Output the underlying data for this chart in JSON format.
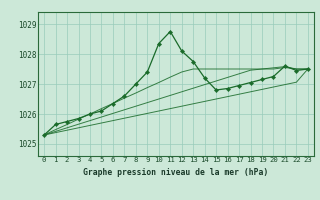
{
  "title": "Graphe pression niveau de la mer (hPa)",
  "bg_color": "#cce8d8",
  "grid_color": "#99ccbb",
  "line_color": "#1a6b2a",
  "xlim": [
    -0.5,
    23.5
  ],
  "ylim": [
    1024.6,
    1029.4
  ],
  "yticks": [
    1025,
    1026,
    1027,
    1028,
    1029
  ],
  "ylabels": [
    "1025",
    "1026",
    "1027",
    "1028",
    "1029"
  ],
  "xticks": [
    0,
    1,
    2,
    3,
    4,
    5,
    6,
    7,
    8,
    9,
    10,
    11,
    12,
    13,
    14,
    15,
    16,
    17,
    18,
    19,
    20,
    21,
    22,
    23
  ],
  "series_main": [
    1025.3,
    1025.65,
    1025.75,
    1025.85,
    1026.0,
    1026.1,
    1026.35,
    1026.6,
    1027.0,
    1027.4,
    1028.35,
    1028.75,
    1028.1,
    1027.75,
    1027.2,
    1026.8,
    1026.85,
    1026.95,
    1027.05,
    1027.15,
    1027.25,
    1027.6,
    1027.45,
    1027.5
  ],
  "series_trend1": [
    1025.3,
    1025.38,
    1025.46,
    1025.54,
    1025.62,
    1025.7,
    1025.78,
    1025.86,
    1025.94,
    1026.02,
    1026.1,
    1026.18,
    1026.26,
    1026.34,
    1026.42,
    1026.5,
    1026.58,
    1026.66,
    1026.74,
    1026.82,
    1026.9,
    1026.98,
    1027.06,
    1027.5
  ],
  "series_trend2": [
    1025.3,
    1025.42,
    1025.54,
    1025.66,
    1025.78,
    1025.9,
    1026.02,
    1026.14,
    1026.26,
    1026.38,
    1026.5,
    1026.62,
    1026.74,
    1026.86,
    1026.98,
    1027.1,
    1027.22,
    1027.34,
    1027.46,
    1027.5,
    1027.54,
    1027.58,
    1027.5,
    1027.5
  ],
  "series_trend3": [
    1025.3,
    1025.48,
    1025.65,
    1025.83,
    1026.0,
    1026.18,
    1026.35,
    1026.53,
    1026.7,
    1026.88,
    1027.05,
    1027.23,
    1027.4,
    1027.5,
    1027.5,
    1027.5,
    1027.5,
    1027.5,
    1027.5,
    1027.5,
    1027.5,
    1027.55,
    1027.5,
    1027.5
  ],
  "title_fontsize": 5.8,
  "tick_fontsize": 5.5,
  "figwidth": 3.2,
  "figheight": 2.0,
  "dpi": 100
}
